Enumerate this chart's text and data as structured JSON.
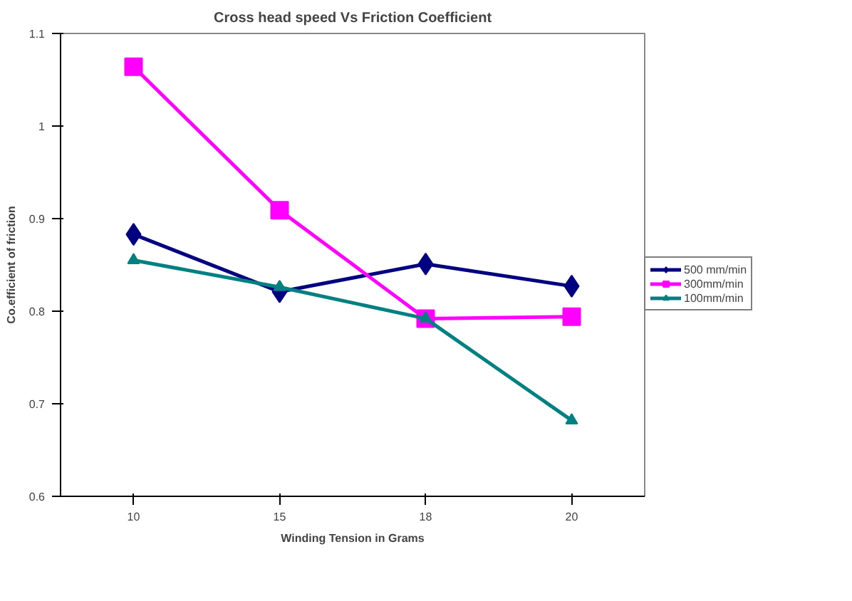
{
  "chart_data": {
    "type": "line",
    "title": "Cross head speed Vs Friction Coefficient",
    "xlabel": "Winding Tension in Grams",
    "ylabel": "Co.efficient of friction",
    "categories": [
      "10",
      "15",
      "18",
      "20"
    ],
    "series": [
      {
        "name": "500 mm/min",
        "color": "#000080",
        "marker": "diamond",
        "values": [
          0.883,
          0.821,
          0.851,
          0.827
        ]
      },
      {
        "name": "300mm/min",
        "color": "#ff00ff",
        "marker": "square",
        "values": [
          1.064,
          0.909,
          0.792,
          0.794
        ]
      },
      {
        "name": "100mm/min",
        "color": "#008080",
        "marker": "triangle",
        "values": [
          0.855,
          0.826,
          0.792,
          0.682
        ]
      }
    ],
    "ylim": [
      0.6,
      1.1
    ],
    "yticks": [
      0.6,
      0.7,
      0.8,
      0.9,
      1,
      1.1
    ],
    "grid": false,
    "legend": "right"
  }
}
